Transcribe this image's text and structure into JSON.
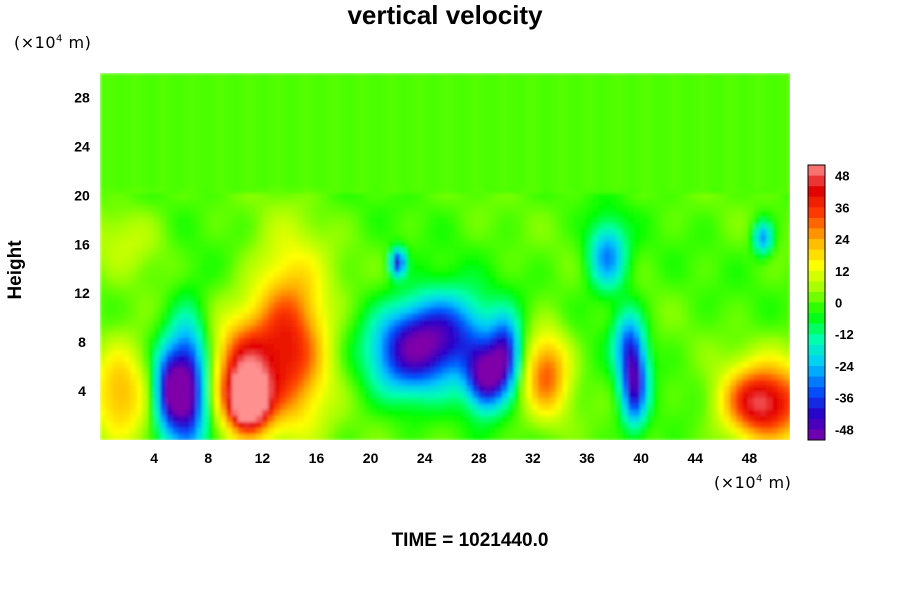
{
  "chart_data": {
    "type": "heatmap",
    "title": "vertical velocity",
    "ylabel": "Height",
    "y_unit": {
      "base": "(×10",
      "exp": "4",
      "suffix": " m)"
    },
    "x_unit": {
      "base": "(×10",
      "exp": "4",
      "suffix": " m)"
    },
    "xlim": [
      0,
      51
    ],
    "ylim": [
      0,
      30
    ],
    "x_ticks": [
      "4",
      "8",
      "12",
      "16",
      "20",
      "24",
      "28",
      "32",
      "36",
      "40",
      "44",
      "48"
    ],
    "y_ticks": [
      "4",
      "8",
      "12",
      "16",
      "20",
      "24",
      "28"
    ],
    "colorbar": {
      "range": [
        -52,
        52
      ],
      "labels": [
        "48",
        "36",
        "24",
        "12",
        "0",
        "-12",
        "-24",
        "-36",
        "-48"
      ],
      "colormap": [
        "#7f00a8",
        "#2a00c8",
        "#0055ff",
        "#00c8ff",
        "#00ffb0",
        "#00ff00",
        "#9cff00",
        "#ffff00",
        "#ffb000",
        "#ff4000",
        "#e00000",
        "#ff9090"
      ]
    },
    "field_features": [
      {
        "x": 51,
        "y": 3,
        "value": 18,
        "sx": 2.5,
        "sy": 3
      },
      {
        "x": 1.5,
        "y": 4,
        "value": 22,
        "sx": 1.5,
        "sy": 3
      },
      {
        "x": 5,
        "y": 4,
        "value": -36,
        "sx": 0.8,
        "sy": 2.5
      },
      {
        "x": 6.5,
        "y": 4,
        "value": -48,
        "sx": 1,
        "sy": 4
      },
      {
        "x": 10.5,
        "y": 5,
        "value": 40,
        "sx": 1.5,
        "sy": 3
      },
      {
        "x": 14,
        "y": 8,
        "value": 38,
        "sx": 2,
        "sy": 5
      },
      {
        "x": 11,
        "y": 3,
        "value": 48,
        "sx": 1,
        "sy": 1.5
      },
      {
        "x": 22,
        "y": 14.5,
        "value": -40,
        "sx": 0.4,
        "sy": 0.8
      },
      {
        "x": 22.5,
        "y": 7,
        "value": -30,
        "sx": 2,
        "sy": 2.5
      },
      {
        "x": 25.5,
        "y": 8.5,
        "value": -40,
        "sx": 2.5,
        "sy": 2.5
      },
      {
        "x": 28.5,
        "y": 5,
        "value": -46,
        "sx": 1,
        "sy": 1.8
      },
      {
        "x": 30,
        "y": 7,
        "value": -38,
        "sx": 0.8,
        "sy": 2
      },
      {
        "x": 33,
        "y": 5.5,
        "value": 30,
        "sx": 1.2,
        "sy": 2.5
      },
      {
        "x": 37.5,
        "y": 15,
        "value": -30,
        "sx": 1,
        "sy": 2
      },
      {
        "x": 39.5,
        "y": 4.5,
        "value": -42,
        "sx": 0.7,
        "sy": 2.5
      },
      {
        "x": 39,
        "y": 8,
        "value": -24,
        "sx": 0.8,
        "sy": 2
      },
      {
        "x": 48.5,
        "y": 3,
        "value": 36,
        "sx": 1.8,
        "sy": 2
      },
      {
        "x": 49,
        "y": 16.5,
        "value": -28,
        "sx": 0.5,
        "sy": 1
      },
      {
        "x": 2,
        "y": 16.5,
        "value": 8,
        "sx": 2,
        "sy": 2
      }
    ]
  },
  "time_label": "TIME = 1021440.0"
}
